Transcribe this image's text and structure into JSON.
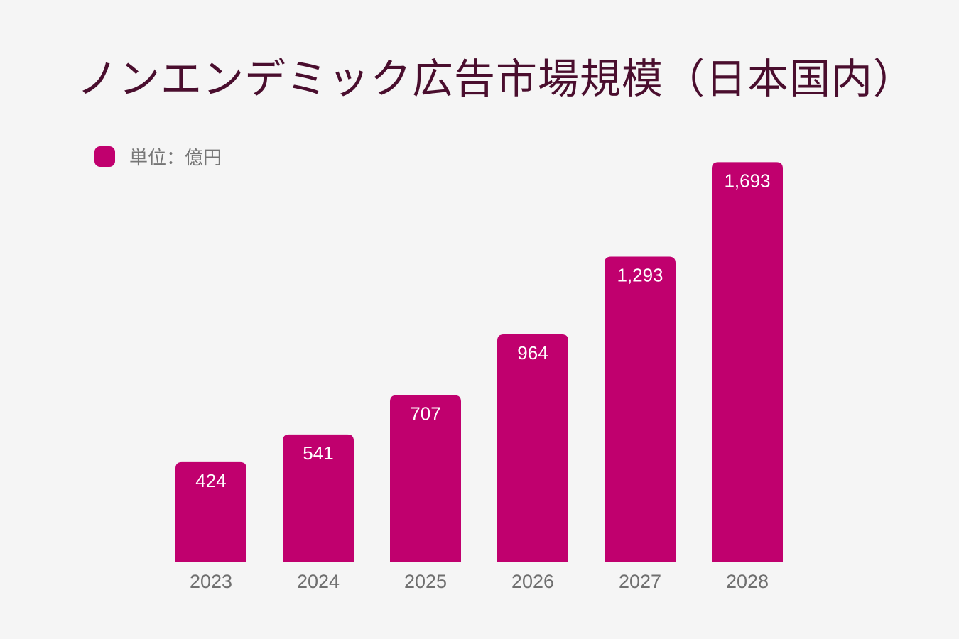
{
  "chart_data": {
    "type": "bar",
    "title": "ノンエンデミック広告市場規模（日本国内）",
    "legend": {
      "label": "単位：億円",
      "placement": "top-left"
    },
    "categories": [
      "2023",
      "2024",
      "2025",
      "2026",
      "2027",
      "2028"
    ],
    "values": [
      424,
      541,
      707,
      964,
      1293,
      1693
    ],
    "value_labels": [
      "424",
      "541",
      "707",
      "964",
      "1,293",
      "1,693"
    ],
    "ylim": [
      0,
      1700
    ],
    "grid": false,
    "colors": {
      "bar": "#c0006e",
      "title": "#4a0e2e",
      "background": "#f5f5f5"
    }
  }
}
